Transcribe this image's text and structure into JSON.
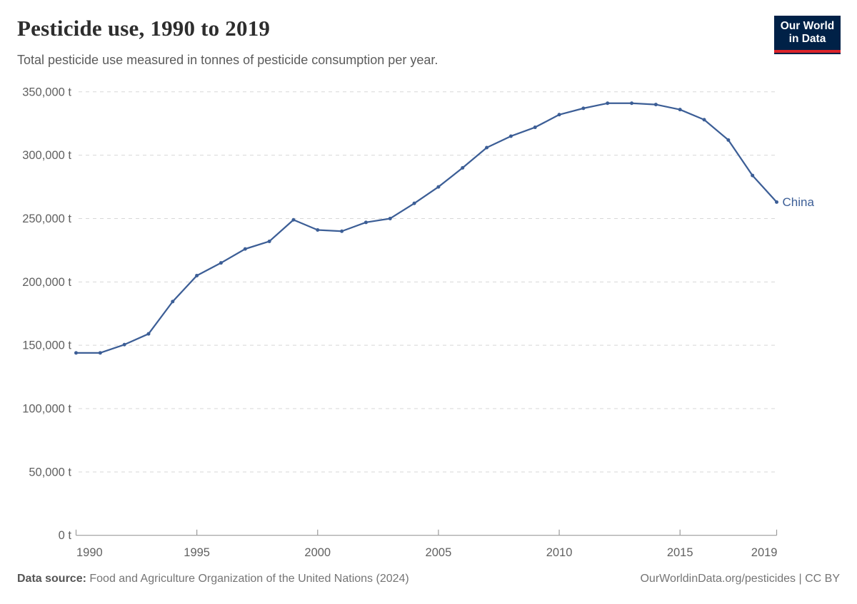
{
  "header": {
    "title": "Pesticide use, 1990 to 2019",
    "subtitle": "Total pesticide use measured in tonnes of pesticide consumption per year."
  },
  "logo": {
    "line1": "Our World",
    "line2": "in Data",
    "bg_color": "#002147",
    "stripe_color": "#dc2329"
  },
  "chart_data": {
    "type": "line",
    "title": "Pesticide use, 1990 to 2019",
    "ylabel": "",
    "xlabel": "",
    "unit": "t",
    "grid": "dashed-horizontal",
    "legend_position": "end-of-line-label",
    "xlim": [
      1990,
      2019
    ],
    "ylim": [
      0,
      350000
    ],
    "x_ticks": [
      {
        "value": 1990,
        "label": "1990"
      },
      {
        "value": 1995,
        "label": "1995"
      },
      {
        "value": 2000,
        "label": "2000"
      },
      {
        "value": 2005,
        "label": "2005"
      },
      {
        "value": 2010,
        "label": "2010"
      },
      {
        "value": 2015,
        "label": "2015"
      },
      {
        "value": 2019,
        "label": "2019"
      }
    ],
    "y_ticks": [
      {
        "value": 0,
        "label": "0 t"
      },
      {
        "value": 50000,
        "label": "50,000 t"
      },
      {
        "value": 100000,
        "label": "100,000 t"
      },
      {
        "value": 150000,
        "label": "150,000 t"
      },
      {
        "value": 200000,
        "label": "200,000 t"
      },
      {
        "value": 250000,
        "label": "250,000 t"
      },
      {
        "value": 300000,
        "label": "300,000 t"
      },
      {
        "value": 350000,
        "label": "350,000 t"
      }
    ],
    "series": [
      {
        "name": "China",
        "end_label": "China",
        "color": "#3c5e96",
        "x": [
          1990,
          1991,
          1992,
          1993,
          1994,
          1995,
          1996,
          1997,
          1998,
          1999,
          2000,
          2001,
          2002,
          2003,
          2004,
          2005,
          2006,
          2007,
          2008,
          2009,
          2010,
          2011,
          2012,
          2013,
          2014,
          2015,
          2016,
          2017,
          2018,
          2019
        ],
        "values": [
          144000,
          144000,
          150500,
          159000,
          184500,
          205000,
          215000,
          226000,
          232000,
          249000,
          241000,
          240000,
          247000,
          250000,
          262000,
          275000,
          290000,
          306000,
          315000,
          322000,
          332000,
          337000,
          341000,
          341000,
          340000,
          336000,
          328000,
          312000,
          284000,
          263000
        ]
      }
    ]
  },
  "footer": {
    "source_label": "Data source:",
    "source_value": " Food and Agriculture Organization of the United Nations (2024)",
    "right_text": "OurWorldinData.org/pesticides | CC BY"
  }
}
